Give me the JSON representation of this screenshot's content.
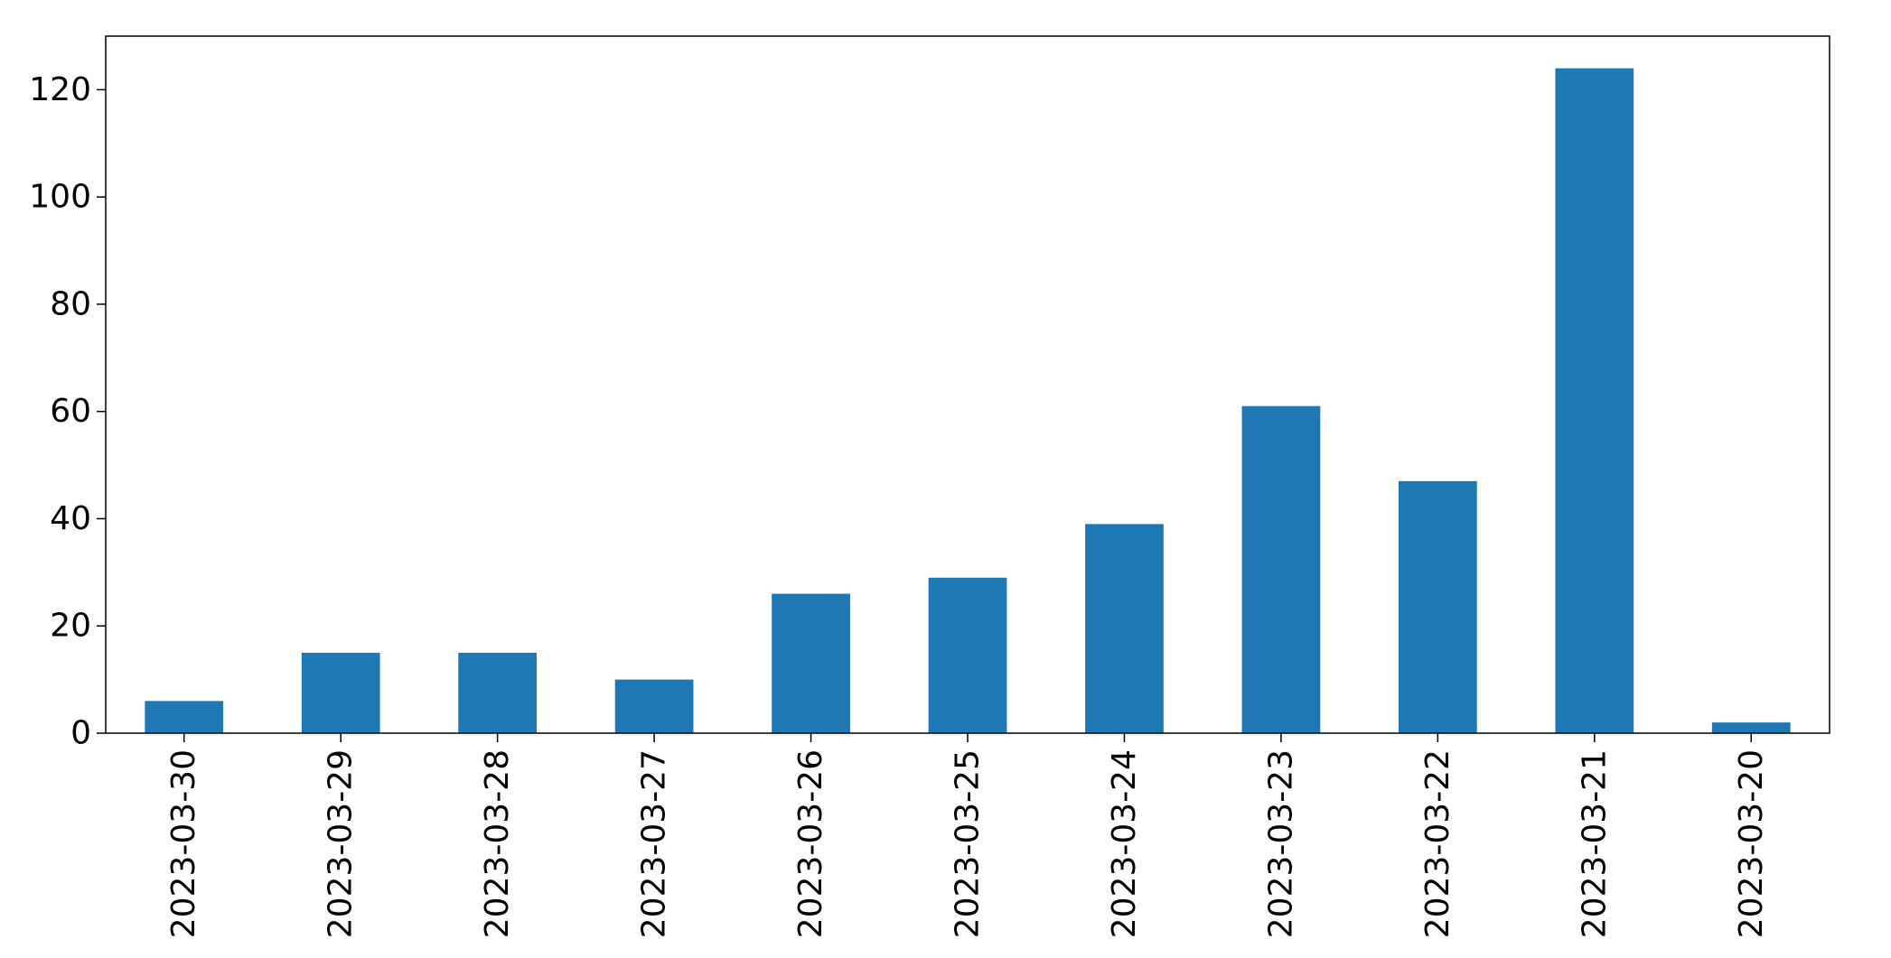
{
  "chart_data": {
    "type": "bar",
    "title": "",
    "xlabel": "",
    "ylabel": "",
    "categories": [
      "2023-03-30",
      "2023-03-29",
      "2023-03-28",
      "2023-03-27",
      "2023-03-26",
      "2023-03-25",
      "2023-03-24",
      "2023-03-23",
      "2023-03-22",
      "2023-03-21",
      "2023-03-20"
    ],
    "values": [
      6,
      15,
      15,
      10,
      26,
      29,
      39,
      61,
      47,
      124,
      2
    ],
    "ylim": [
      0,
      130
    ],
    "yticks": [
      0,
      20,
      40,
      60,
      80,
      100,
      120
    ],
    "grid": false,
    "legend": "none",
    "colors": {
      "bar": "#1f77b4",
      "axis": "#000000",
      "background": "#ffffff"
    }
  }
}
